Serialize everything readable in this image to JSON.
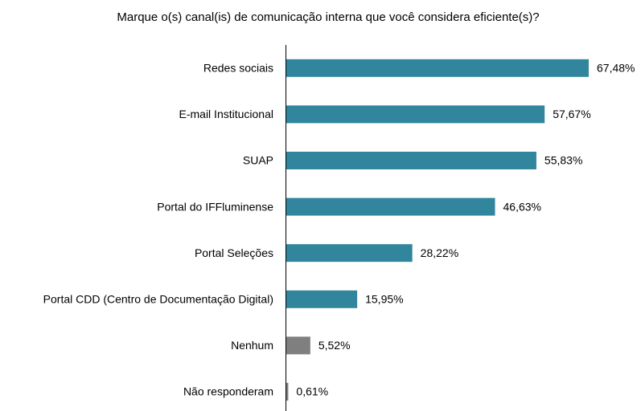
{
  "chart_data": {
    "type": "barh",
    "title": "Marque o(s) canal(is) de comunicação interna que você considera eficiente(s)?",
    "categories": [
      "Redes sociais",
      "E-mail Institucional",
      "SUAP",
      "Portal do IFFluminense",
      "Portal Seleções",
      "Portal CDD (Centro de Documentação Digital)",
      "Nenhum",
      "Não responderam"
    ],
    "values": [
      67.48,
      57.67,
      55.83,
      46.63,
      28.22,
      15.95,
      5.52,
      0.61
    ],
    "value_labels": [
      "67,48%",
      "57,67%",
      "55,83%",
      "46,63%",
      "28,22%",
      "15,95%",
      "5,52%",
      "0,61%"
    ],
    "colors": [
      "#31859c",
      "#31859c",
      "#31859c",
      "#31859c",
      "#31859c",
      "#31859c",
      "#7f7f7f",
      "#7f7f7f"
    ]
  }
}
